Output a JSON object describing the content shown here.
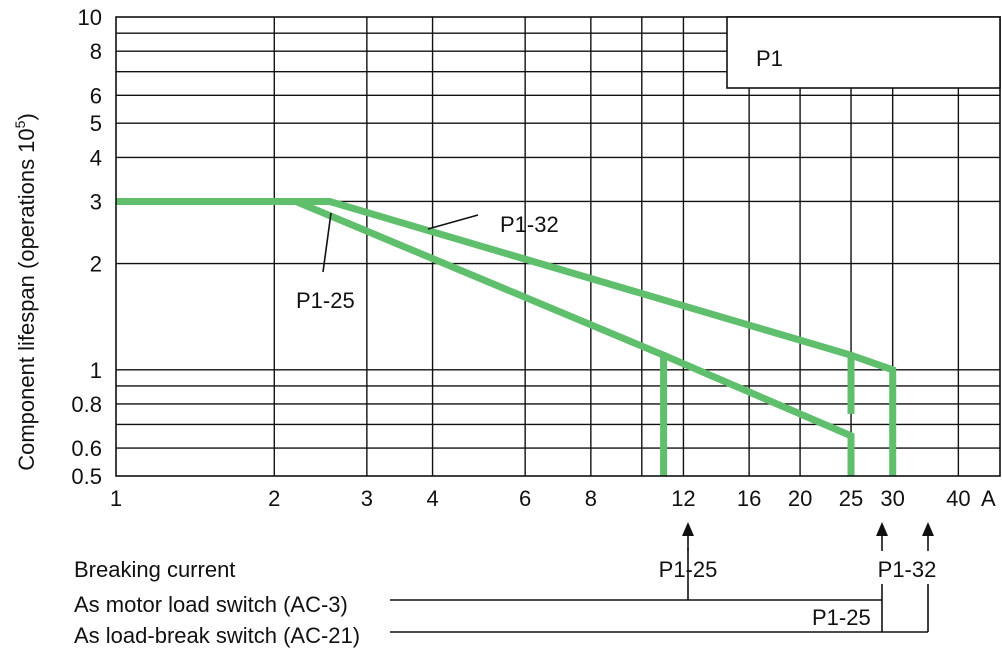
{
  "chart_data": {
    "type": "line",
    "title": "",
    "xlabel": "",
    "x_unit": "A",
    "ylabel": "Component lifespan (operations 10",
    "ylabel_sup": "5",
    "ylabel_close": ")",
    "x_scale": "log",
    "y_scale": "log",
    "xlim": [
      1,
      48
    ],
    "ylim": [
      0.5,
      10
    ],
    "x_ticks": [
      1,
      2,
      3,
      4,
      6,
      8,
      12,
      16,
      20,
      25,
      30,
      40
    ],
    "y_ticks": [
      0.5,
      0.6,
      0.8,
      1,
      2,
      3,
      4,
      5,
      6,
      8,
      10
    ],
    "x_tick_labels": [
      "1",
      "2",
      "3",
      "4",
      "6",
      "8",
      "12",
      "16",
      "20",
      "25",
      "30",
      "40"
    ],
    "y_tick_labels": [
      "0.5",
      "0.6",
      "0.8",
      "1",
      "2",
      "3",
      "4",
      "5",
      "6",
      "8",
      "10"
    ],
    "series": [
      {
        "name": "P1-25",
        "x": [
          1,
          2.2,
          11,
          11
        ],
        "y": [
          3,
          3,
          1.1,
          0.5
        ]
      },
      {
        "name": "P1-25",
        "x": [
          11,
          25,
          25
        ],
        "y": [
          1.1,
          0.65,
          0.5
        ]
      },
      {
        "name": "P1-32",
        "x": [
          1,
          2.55,
          25,
          30,
          30
        ],
        "y": [
          3,
          3,
          1.1,
          1.0,
          0.5
        ]
      },
      {
        "name": "P1-32",
        "x": [
          25,
          25
        ],
        "y": [
          1.1,
          0.75
        ]
      }
    ],
    "legend_box": "P1",
    "annotations": [
      {
        "text": "P1-32",
        "position": "middle"
      },
      {
        "text": "P1-25",
        "position": "left"
      }
    ],
    "series_color": "#5fbf6c",
    "grid": true
  },
  "below_chart": {
    "breaking_current_label": "Breaking current",
    "row_ac3_label": "As motor load switch (AC-3)",
    "row_ac21_label": "As load-break switch (AC-21)",
    "arrow_labels": [
      "P1-25",
      "P1-32"
    ],
    "ac21_p1_25_label": "P1-25"
  }
}
